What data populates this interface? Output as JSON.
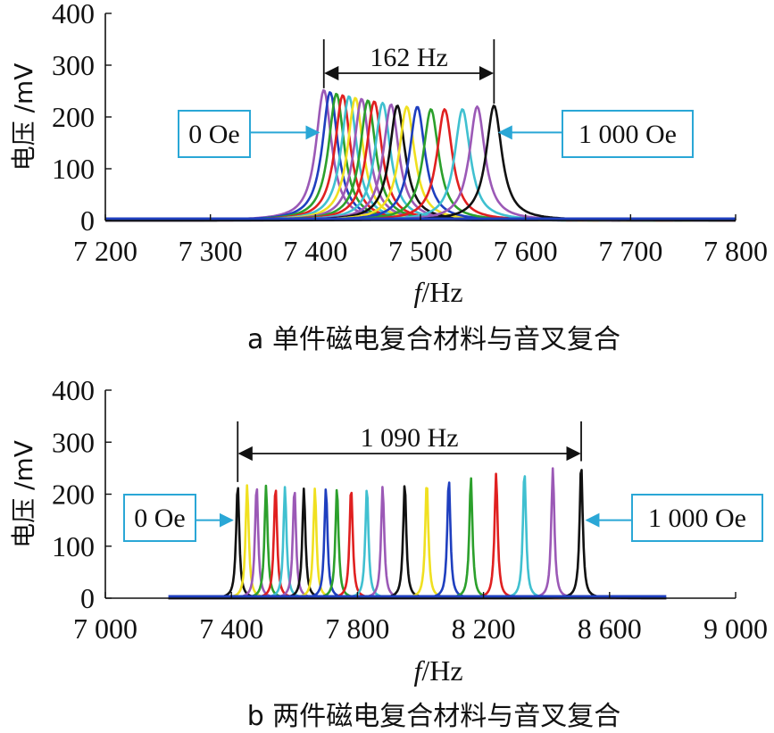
{
  "chart_data": [
    {
      "type": "line",
      "caption": "a 单件磁电复合材料与音叉复合",
      "xlabel_italic": "f",
      "xlabel_unit": "/Hz",
      "ylabel": "电压 /mV",
      "xlim": [
        7200,
        7800
      ],
      "ylim": [
        0,
        400
      ],
      "xticks": [
        7200,
        7300,
        7400,
        7500,
        7600,
        7700,
        7800
      ],
      "xtick_labels": [
        "7 200",
        "7 300",
        "7 400",
        "7 500",
        "7 600",
        "7 700",
        "7 800"
      ],
      "yticks": [
        0,
        100,
        200,
        300,
        400
      ],
      "ytick_labels": [
        "0",
        "100",
        "200",
        "300",
        "400"
      ],
      "span": {
        "from": 7408,
        "to": 7570,
        "label": "162 Hz"
      },
      "annotations": [
        {
          "text": "0 Oe",
          "target_x": 7408,
          "target_y": 170
        },
        {
          "text": "1 000 Oe",
          "target_x": 7570,
          "target_y": 170
        }
      ],
      "baseline": {
        "x_from": 7200,
        "x_to": 7800
      },
      "series": [
        {
          "f0": 7408,
          "peak": 252,
          "width": 9,
          "color": "#9b59b6"
        },
        {
          "f0": 7414,
          "peak": 248,
          "width": 9,
          "color": "#1f3fbf"
        },
        {
          "f0": 7420,
          "peak": 245,
          "width": 9,
          "color": "#2ca02c"
        },
        {
          "f0": 7426,
          "peak": 242,
          "width": 9,
          "color": "#e02020"
        },
        {
          "f0": 7432,
          "peak": 240,
          "width": 9,
          "color": "#40c0d0"
        },
        {
          "f0": 7438,
          "peak": 237,
          "width": 9,
          "color": "#f0e020"
        },
        {
          "f0": 7444,
          "peak": 235,
          "width": 9,
          "color": "#9b59b6"
        },
        {
          "f0": 7450,
          "peak": 232,
          "width": 9,
          "color": "#2ca02c"
        },
        {
          "f0": 7456,
          "peak": 230,
          "width": 9,
          "color": "#e02020"
        },
        {
          "f0": 7464,
          "peak": 227,
          "width": 9,
          "color": "#40c0d0"
        },
        {
          "f0": 7472,
          "peak": 224,
          "width": 9,
          "color": "#9b59b6"
        },
        {
          "f0": 7478,
          "peak": 222,
          "width": 9,
          "color": "#111111"
        },
        {
          "f0": 7487,
          "peak": 220,
          "width": 9,
          "color": "#f0e020"
        },
        {
          "f0": 7497,
          "peak": 220,
          "width": 9,
          "color": "#1f3fbf"
        },
        {
          "f0": 7510,
          "peak": 215,
          "width": 9,
          "color": "#2ca02c"
        },
        {
          "f0": 7523,
          "peak": 215,
          "width": 9,
          "color": "#e02020"
        },
        {
          "f0": 7540,
          "peak": 215,
          "width": 9,
          "color": "#40c0d0"
        },
        {
          "f0": 7554,
          "peak": 220,
          "width": 9,
          "color": "#9b59b6"
        },
        {
          "f0": 7570,
          "peak": 222,
          "width": 9,
          "color": "#111111"
        }
      ]
    },
    {
      "type": "line",
      "caption": "b 两件磁电复合材料与音叉复合",
      "xlabel_italic": "f",
      "xlabel_unit": "/Hz",
      "ylabel": "电压 /mV",
      "xlim": [
        7000,
        9000
      ],
      "ylim": [
        0,
        400
      ],
      "xticks": [
        7000,
        7400,
        7800,
        8200,
        8600,
        9000
      ],
      "xtick_labels": [
        "7 000",
        "7 400",
        "7 800",
        "8 200",
        "8 600",
        "9 000"
      ],
      "yticks": [
        0,
        100,
        200,
        300,
        400
      ],
      "ytick_labels": [
        "0",
        "100",
        "200",
        "300",
        "400"
      ],
      "span": {
        "from": 7420,
        "to": 8510,
        "label": "1 090 Hz"
      },
      "annotations": [
        {
          "text": "0 Oe",
          "target_x": 7420,
          "target_y": 150
        },
        {
          "text": "1 000 Oe",
          "target_x": 8510,
          "target_y": 150
        }
      ],
      "baseline": {
        "x_from": 7200,
        "x_to": 8780
      },
      "series": [
        {
          "f0": 7420,
          "peak": 220,
          "width": 6,
          "color": "#111111"
        },
        {
          "f0": 7450,
          "peak": 218,
          "width": 6,
          "color": "#f0e020"
        },
        {
          "f0": 7480,
          "peak": 218,
          "width": 6,
          "color": "#9b59b6"
        },
        {
          "f0": 7510,
          "peak": 217,
          "width": 6,
          "color": "#2ca02c"
        },
        {
          "f0": 7540,
          "peak": 216,
          "width": 6,
          "color": "#e02020"
        },
        {
          "f0": 7570,
          "peak": 214,
          "width": 6,
          "color": "#40c0d0"
        },
        {
          "f0": 7600,
          "peak": 212,
          "width": 6,
          "color": "#9b59b6"
        },
        {
          "f0": 7630,
          "peak": 211,
          "width": 6,
          "color": "#111111"
        },
        {
          "f0": 7665,
          "peak": 212,
          "width": 6,
          "color": "#f0e020"
        },
        {
          "f0": 7700,
          "peak": 212,
          "width": 6,
          "color": "#1f3fbf"
        },
        {
          "f0": 7735,
          "peak": 213,
          "width": 6,
          "color": "#2ca02c"
        },
        {
          "f0": 7780,
          "peak": 214,
          "width": 6,
          "color": "#e02020"
        },
        {
          "f0": 7830,
          "peak": 214,
          "width": 6,
          "color": "#40c0d0"
        },
        {
          "f0": 7880,
          "peak": 216,
          "width": 6,
          "color": "#9b59b6"
        },
        {
          "f0": 7950,
          "peak": 222,
          "width": 6,
          "color": "#111111"
        },
        {
          "f0": 8020,
          "peak": 226,
          "width": 6,
          "color": "#f0e020"
        },
        {
          "f0": 8090,
          "peak": 230,
          "width": 6,
          "color": "#1f3fbf"
        },
        {
          "f0": 8160,
          "peak": 233,
          "width": 6,
          "color": "#2ca02c"
        },
        {
          "f0": 8240,
          "peak": 240,
          "width": 6,
          "color": "#e02020"
        },
        {
          "f0": 8330,
          "peak": 245,
          "width": 6,
          "color": "#40c0d0"
        },
        {
          "f0": 8420,
          "peak": 250,
          "width": 6,
          "color": "#9b59b6"
        },
        {
          "f0": 8510,
          "peak": 260,
          "width": 6,
          "color": "#111111"
        }
      ]
    }
  ],
  "colors": {
    "annotation_border": "#2aa7d6",
    "annotation_arrow": "#2aa7d6",
    "axis": "#111111",
    "baseline": "#1f3fbf"
  }
}
